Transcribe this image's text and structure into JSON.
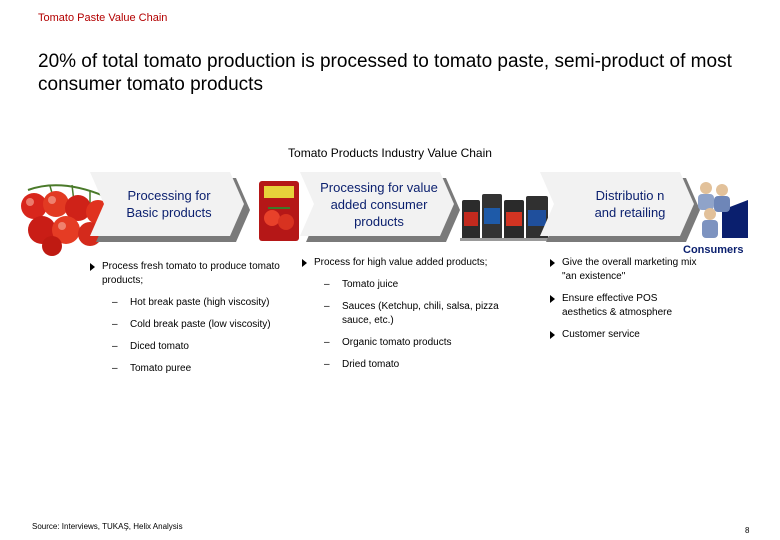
{
  "header": {
    "section_label": "Tomato Paste Value Chain",
    "headline": "20% of total tomato production is processed to tomato paste, semi-product of most consumer tomato products"
  },
  "chain": {
    "title": "Tomato Products Industry Value Chain",
    "stage1": {
      "label": "Processing for Basic products",
      "bullet": "Process fresh tomato to produce tomato products;",
      "subs": [
        "Hot break paste (high viscosity)",
        "Cold break paste (low viscosity)",
        "Diced tomato",
        "Tomato puree"
      ]
    },
    "stage2": {
      "label": "Processing for value added consumer products",
      "bullet": "Process for high value added products;",
      "subs": [
        "Tomato juice",
        "Sauces (Ketchup, chili, salsa, pizza sauce, etc.)",
        "Organic tomato products",
        "Dried tomato"
      ]
    },
    "stage3": {
      "label": "Distributio n and retailing",
      "bullets": [
        "Give the overall marketing mix \"an existence\"",
        "Ensure effective POS aesthetics & atmosphere",
        "Customer service"
      ]
    },
    "consumers_label": "Consumers"
  },
  "footer": {
    "source": "Source: Interviews, TUKAŞ, Helix Analysis",
    "page_number": "8"
  },
  "colors": {
    "chevron_fill": "#f2f2f2",
    "chevron_shadow": "#7a7a7a",
    "chevron_text": "#0a1f6e",
    "section_label": "#b30000"
  },
  "icons": [
    "tomato-vine-icon",
    "tomato-paste-can-icon",
    "product-jars-icon",
    "people-group-icon"
  ]
}
